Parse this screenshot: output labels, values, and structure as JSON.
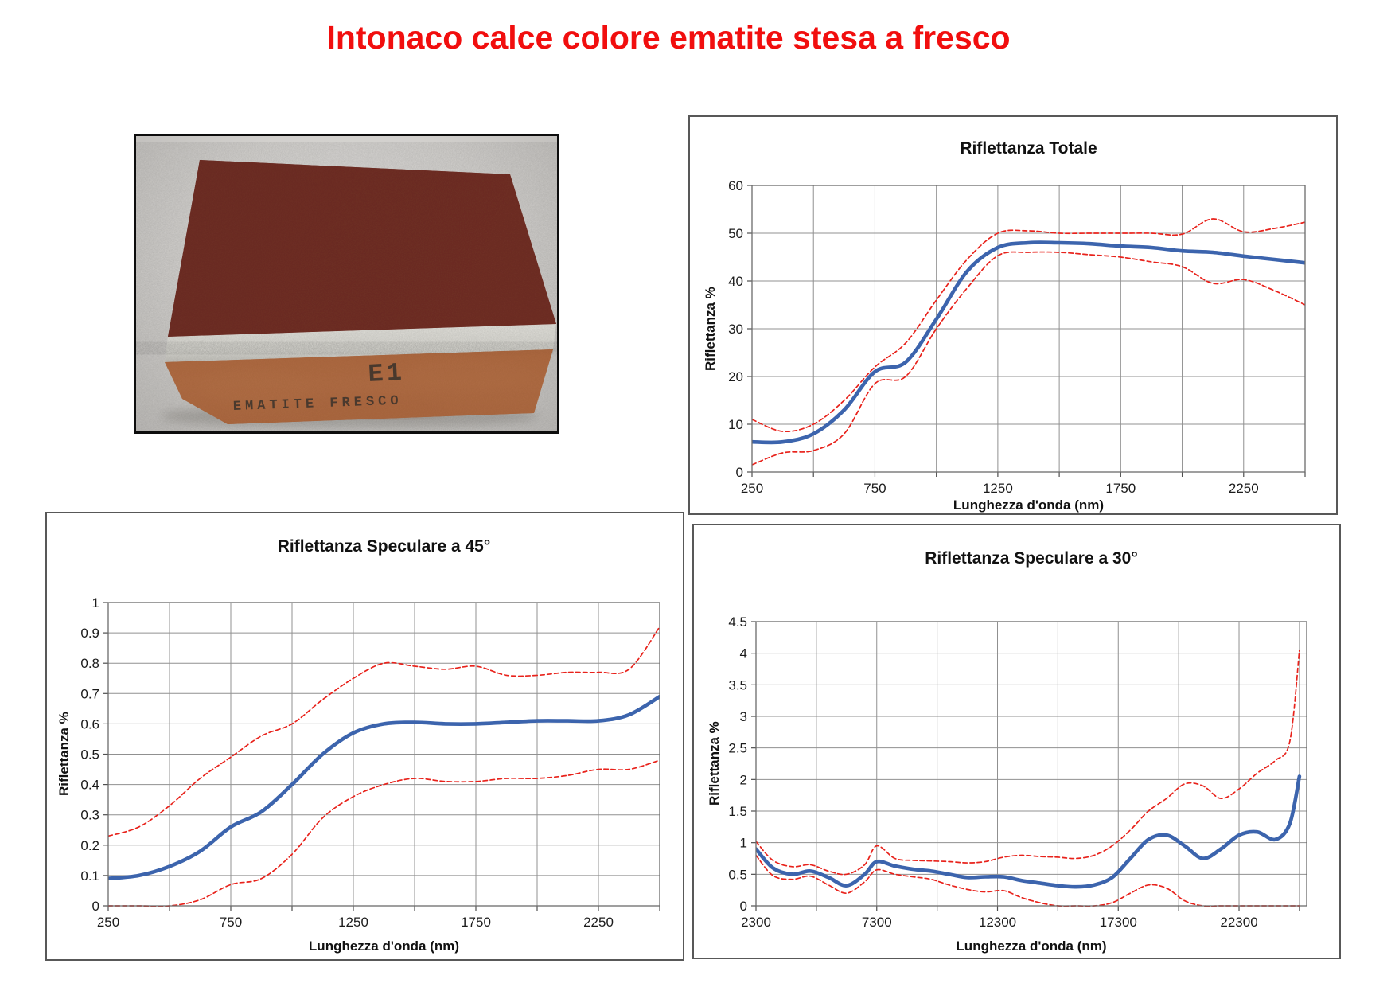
{
  "page": {
    "title": "Intonaco calce colore ematite stesa a fresco",
    "title_color": "#f10e0e",
    "background": "#ffffff"
  },
  "photo": {
    "label_line1": "E1",
    "label_line2": "EMATITE  FRESCO",
    "colors": {
      "backdrop": "#d2d0cd",
      "top_face": "#6e2d25",
      "lime_stripe": "#dcdbd5",
      "brick_face": "#ae6a41",
      "handwriting": "#332f2a"
    }
  },
  "colors": {
    "mean_line": "#3c64ad",
    "bound_line": "#e8221b",
    "grid": "#909090",
    "frame": "#6b6b6b",
    "tick_text": "#1c1c1c"
  },
  "chart_data": [
    {
      "type": "line",
      "title": "Riflettanza Totale",
      "xlabel": "Lunghezza d'onda (nm)",
      "ylabel": "Riflettanza %",
      "xlim": [
        250,
        2500
      ],
      "ylim": [
        0,
        60
      ],
      "x_grid_start": 250,
      "x_grid_step": 250,
      "y_grid_step": 10,
      "x_tick_values": [
        250,
        750,
        1250,
        1750,
        2250
      ],
      "x_tick_labels": [
        "250",
        "750",
        "1250",
        "1750",
        "2250"
      ],
      "y_tick_values": [
        0,
        10,
        20,
        30,
        40,
        50,
        60
      ],
      "y_tick_labels": [
        "0",
        "10",
        "20",
        "30",
        "40",
        "50",
        "60"
      ],
      "x": [
        250,
        375,
        500,
        625,
        750,
        875,
        1000,
        1125,
        1250,
        1375,
        1500,
        1625,
        1750,
        1875,
        2000,
        2125,
        2250,
        2375,
        2500
      ],
      "series": [
        {
          "role": "mean",
          "color": "#3c64ad",
          "style": "solid",
          "width": 4.6,
          "values": [
            6.3,
            6.3,
            8,
            13,
            21,
            23,
            32,
            42,
            47,
            48,
            48,
            47.8,
            47.3,
            47,
            46.3,
            46,
            45.2,
            44.5,
            43.8
          ]
        },
        {
          "role": "upper_bound",
          "color": "#e8221b",
          "style": "dashed",
          "width": 1.7,
          "values": [
            11,
            8.5,
            10,
            15,
            22,
            27,
            36,
            44.5,
            50,
            50.5,
            50,
            50,
            50,
            50,
            49.8,
            53,
            50.3,
            51,
            52.3
          ]
        },
        {
          "role": "lower_bound",
          "color": "#e8221b",
          "style": "dashed",
          "width": 1.7,
          "values": [
            1.5,
            4,
            4.5,
            8,
            18.5,
            20,
            30,
            38.5,
            45.3,
            46,
            46,
            45.5,
            45,
            44,
            43,
            39.5,
            40.3,
            38,
            35
          ]
        }
      ]
    },
    {
      "type": "line",
      "title": "Riflettanza Speculare a 45°",
      "xlabel": "Lunghezza d'onda (nm)",
      "ylabel": "Riflettanza %",
      "xlim": [
        250,
        2500
      ],
      "ylim": [
        0,
        1
      ],
      "x_grid_start": 250,
      "x_grid_step": 250,
      "y_grid_step": 0.1,
      "x_tick_values": [
        250,
        750,
        1250,
        1750,
        2250
      ],
      "x_tick_labels": [
        "250",
        "750",
        "1250",
        "1750",
        "2250"
      ],
      "y_tick_values": [
        0,
        0.1,
        0.2,
        0.3,
        0.4,
        0.5,
        0.6,
        0.7,
        0.8,
        0.9,
        1
      ],
      "y_tick_labels": [
        "0",
        "0.1",
        "0.2",
        "0.3",
        "0.4",
        "0.5",
        "0.6",
        "0.7",
        "0.8",
        "0.9",
        "1"
      ],
      "x": [
        250,
        375,
        500,
        625,
        750,
        875,
        1000,
        1125,
        1250,
        1375,
        1500,
        1625,
        1750,
        1875,
        2000,
        2125,
        2250,
        2375,
        2500
      ],
      "series": [
        {
          "role": "mean",
          "color": "#3c64ad",
          "style": "solid",
          "width": 4.6,
          "values": [
            0.09,
            0.1,
            0.13,
            0.18,
            0.26,
            0.31,
            0.4,
            0.5,
            0.57,
            0.6,
            0.605,
            0.6,
            0.6,
            0.605,
            0.61,
            0.61,
            0.61,
            0.63,
            0.69
          ]
        },
        {
          "role": "upper_bound",
          "color": "#e8221b",
          "style": "dashed",
          "width": 1.7,
          "values": [
            0.23,
            0.26,
            0.33,
            0.42,
            0.49,
            0.56,
            0.6,
            0.68,
            0.75,
            0.8,
            0.79,
            0.78,
            0.79,
            0.76,
            0.76,
            0.77,
            0.77,
            0.78,
            0.92
          ]
        },
        {
          "role": "lower_bound",
          "color": "#e8221b",
          "style": "dashed",
          "width": 1.7,
          "values": [
            0,
            0,
            0,
            0.02,
            0.07,
            0.09,
            0.17,
            0.29,
            0.36,
            0.4,
            0.42,
            0.41,
            0.41,
            0.42,
            0.42,
            0.43,
            0.45,
            0.45,
            0.48
          ]
        }
      ]
    },
    {
      "type": "line",
      "title": "Riflettanza Speculare a 30°",
      "xlabel": "Lunghezza d'onda (nm)",
      "ylabel": "Riflettanza %",
      "xlim": [
        2300,
        25100
      ],
      "ylim": [
        0,
        4.5
      ],
      "x_grid_start": 2300,
      "x_grid_step": 2500,
      "y_grid_step": 0.5,
      "x_tick_values": [
        2300,
        7300,
        12300,
        17300,
        22300
      ],
      "x_tick_labels": [
        "2300",
        "7300",
        "12300",
        "17300",
        "22300"
      ],
      "y_tick_values": [
        0,
        0.5,
        1,
        1.5,
        2,
        2.5,
        3,
        3.5,
        4,
        4.5
      ],
      "y_tick_labels": [
        "0",
        "0.5",
        "1",
        "1.5",
        "2",
        "2.5",
        "3",
        "3.5",
        "4",
        "4.5"
      ],
      "x": [
        2300,
        3000,
        3800,
        4550,
        5300,
        6050,
        6800,
        7300,
        8050,
        8800,
        9550,
        10300,
        11050,
        11800,
        12550,
        13300,
        14050,
        14800,
        15550,
        16300,
        17050,
        17800,
        18550,
        19300,
        20050,
        20800,
        21550,
        22300,
        23050,
        23800,
        24400,
        24800
      ],
      "series": [
        {
          "role": "mean",
          "color": "#3c64ad",
          "style": "solid",
          "width": 4.6,
          "values": [
            0.9,
            0.6,
            0.5,
            0.55,
            0.45,
            0.32,
            0.5,
            0.7,
            0.63,
            0.58,
            0.55,
            0.5,
            0.45,
            0.46,
            0.46,
            0.4,
            0.36,
            0.32,
            0.3,
            0.33,
            0.45,
            0.75,
            1.05,
            1.12,
            0.95,
            0.75,
            0.9,
            1.12,
            1.17,
            1.05,
            1.3,
            2.05
          ]
        },
        {
          "role": "upper_bound",
          "color": "#e8221b",
          "style": "dashed",
          "width": 1.7,
          "values": [
            1.02,
            0.72,
            0.62,
            0.65,
            0.55,
            0.5,
            0.65,
            0.95,
            0.75,
            0.72,
            0.71,
            0.7,
            0.68,
            0.7,
            0.77,
            0.8,
            0.78,
            0.77,
            0.75,
            0.8,
            0.95,
            1.2,
            1.5,
            1.7,
            1.93,
            1.9,
            1.7,
            1.85,
            2.1,
            2.3,
            2.6,
            4.05
          ]
        },
        {
          "role": "lower_bound",
          "color": "#e8221b",
          "style": "dashed",
          "width": 1.7,
          "values": [
            0.8,
            0.48,
            0.42,
            0.47,
            0.33,
            0.2,
            0.38,
            0.57,
            0.5,
            0.46,
            0.42,
            0.33,
            0.26,
            0.22,
            0.24,
            0.13,
            0.05,
            0,
            0,
            0,
            0.05,
            0.2,
            0.33,
            0.28,
            0.08,
            0,
            0,
            0,
            0,
            0,
            0,
            0
          ]
        }
      ]
    }
  ]
}
